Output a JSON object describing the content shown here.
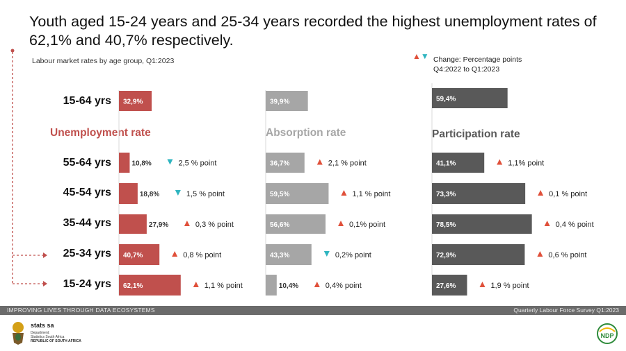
{
  "title": "Youth aged 15-24 years and 25-34 years recorded the highest unemployment rates of  62,1% and 40,7% respectively.",
  "subtitle": "Labour market rates by age group, Q1:2023",
  "legend": {
    "up_symbol": "▲",
    "down_symbol": "▼",
    "text_line1": "Change: Percentage points",
    "text_line2": "Q4:2022 to Q1:2023"
  },
  "colors": {
    "unemployment": "#c0504d",
    "absorption": "#a6a6a6",
    "participation": "#595959",
    "up_triangle": "#e0503a",
    "down_triangle": "#2fb5c0"
  },
  "age_groups": [
    "15-64 yrs",
    "55-64 yrs",
    "45-54 yrs",
    "35-44 yrs",
    "25-34 yrs",
    "15-24 yrs"
  ],
  "chart_data": [
    {
      "type": "bar",
      "title": "Unemployment rate",
      "categories": [
        "15-64 yrs",
        "55-64 yrs",
        "45-54 yrs",
        "35-44 yrs",
        "25-34 yrs",
        "15-24 yrs"
      ],
      "values": [
        32.9,
        10.8,
        18.8,
        27.9,
        40.7,
        62.1
      ],
      "value_labels": [
        "32,9%",
        "10,8%",
        "18,8%",
        "27,9%",
        "40,7%",
        "62,1%"
      ],
      "changes": [
        null,
        "2,5 % point",
        "1,5 % point",
        "0,3 % point",
        "0,8 % point",
        "1,1 % point"
      ],
      "directions": [
        null,
        "down",
        "down",
        "up",
        "up",
        "up"
      ]
    },
    {
      "type": "bar",
      "title": "Absorption rate",
      "categories": [
        "15-64 yrs",
        "55-64 yrs",
        "45-54 yrs",
        "35-44 yrs",
        "25-34 yrs",
        "15-24 yrs"
      ],
      "values": [
        39.9,
        36.7,
        59.5,
        56.6,
        43.3,
        10.4
      ],
      "value_labels": [
        "39,9%",
        "36,7%",
        "59,5%",
        "56,6%",
        "43,3%",
        "10,4%"
      ],
      "changes": [
        null,
        "2,1 % point",
        "1,1 % point",
        "0,1% point",
        "0,2% point",
        "0,4% point"
      ],
      "directions": [
        null,
        "up",
        "up",
        "up",
        "down",
        "up"
      ]
    },
    {
      "type": "bar",
      "title": "Participation rate",
      "categories": [
        "15-64 yrs",
        "55-64 yrs",
        "45-54 yrs",
        "35-44 yrs",
        "25-34 yrs",
        "15-24 yrs"
      ],
      "values": [
        59.4,
        41.1,
        73.3,
        78.5,
        72.9,
        27.6
      ],
      "value_labels": [
        "59,4%",
        "41,1%",
        "73,3%",
        "78,5%",
        "72,9%",
        "27,6%"
      ],
      "changes": [
        null,
        "1,1% point",
        "0,1 % point",
        "0,4 % point",
        "0,6 % point",
        "1,9 % point"
      ],
      "directions": [
        null,
        "up",
        "up",
        "up",
        "up",
        "up"
      ]
    }
  ],
  "footer": {
    "left": "IMPROVING LIVES THROUGH DATA ECOSYSTEMS",
    "right": "Quarterly Labour Force Survey Q1:2023"
  },
  "org": {
    "name": "stats sa",
    "dept_line1": "Department:",
    "dept_line2": "Statistics South Africa",
    "country": "REPUBLIC OF SOUTH AFRICA"
  },
  "ndp_text": "NDP"
}
